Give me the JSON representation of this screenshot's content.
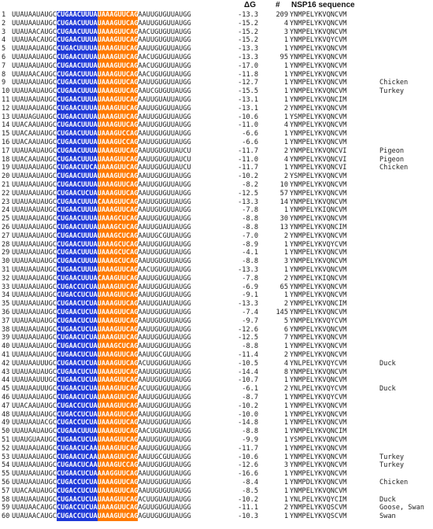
{
  "headers": {
    "dg": "ΔG",
    "count": "#",
    "protein": "NSP16 sequence"
  },
  "rows": [
    {
      "n": "1",
      "pre": "UUAUAAUAUGC",
      "blue": "CUGAACUUUA",
      "red": "UAAAGUUCAG",
      "post": "AAUUGUGUUAUGG",
      "dg": "-13.3",
      "count": "209",
      "protein": "YNMPELYKVQNCVM",
      "host": ""
    },
    {
      "n": "2",
      "pre": "UUAUAAUAUGC",
      "blue": "CUGAACUUUA",
      "red": "UAAAGUUCAG",
      "post": "AAUUGUGUUAUGG",
      "dg": "-15.2",
      "count": "4",
      "protein": "YNMPELYKVQNCVM",
      "host": ""
    },
    {
      "n": "3",
      "pre": "UUAUAACAUGC",
      "blue": "CUGAACUUUA",
      "red": "UAAAGUUCAG",
      "post": "AACUGUGUUAUGG",
      "dg": "-15.2",
      "count": "3",
      "protein": "YNMPELYKVQNCVM",
      "host": ""
    },
    {
      "n": "4",
      "pre": "UUAUAACAUGC",
      "blue": "CUGAACUUUA",
      "red": "UAAAGUUCAG",
      "post": "AAUUGUGUUAUGG",
      "dg": "-15.2",
      "count": "1",
      "protein": "YNMPELYKVQYCVM",
      "host": ""
    },
    {
      "n": "5",
      "pre": "UUAUAAUAUGC",
      "blue": "CUGACUUUUA",
      "red": "UAAAGUUCAG",
      "post": "AAUUGUGUUAUGG",
      "dg": "-13.3",
      "count": "1",
      "protein": "YNMPELYKVQNCVM",
      "host": ""
    },
    {
      "n": "6",
      "pre": "UUAUAAUAUGC",
      "blue": "CUGAACUUUA",
      "red": "UAAAGUUCAG",
      "post": "AACUGUGUUAUGG",
      "dg": "-13.3",
      "count": "95",
      "protein": "YNMPELYKVQNCVM",
      "host": ""
    },
    {
      "n": "7",
      "pre": "UUAUAAUAUGC",
      "blue": "CUGAACUUUA",
      "red": "UAAAGUUCAG",
      "post": "AACUGUGUUAUGG",
      "dg": "-17.0",
      "count": "1",
      "protein": "YNMPELYKVQNCVM",
      "host": ""
    },
    {
      "n": "8",
      "pre": "UUAUAACAUGC",
      "blue": "CUGAACUUUA",
      "red": "UAAAGUUCAG",
      "post": "AACUGUGUUAUGG",
      "dg": "-11.8",
      "count": "1",
      "protein": "YNMPELYKVQNCVM",
      "host": ""
    },
    {
      "n": "9",
      "pre": "UUAUAAUAUGC",
      "blue": "CUGAACUUUA",
      "red": "UAAAGUUCAG",
      "post": "AAUUGUGUUAUGG",
      "dg": "-12.7",
      "count": "1",
      "protein": "YNMPELYKVQNCVM",
      "host": "Chicken"
    },
    {
      "n": "10",
      "pre": "UUAUAAUAUGC",
      "blue": "CUGAACUUUA",
      "red": "UAAAGUUCAG",
      "post": "AAUCGUGUUAUGG",
      "dg": "-15.5",
      "count": "1",
      "protein": "YNMPELYKVQNCVM",
      "host": "Turkey"
    },
    {
      "n": "11",
      "pre": "UUAUAAUAUGC",
      "blue": "CUGAACUUUA",
      "red": "UAAAGUUCAG",
      "post": "AAUUGUAUUAUGG",
      "dg": "-13.1",
      "count": "1",
      "protein": "YNMPELYKVQNCIM",
      "host": ""
    },
    {
      "n": "12",
      "pre": "UUAUAAUAUGC",
      "blue": "CUGAACUUUA",
      "red": "UAAAGUUCAG",
      "post": "AAUUGUGUUAUGG",
      "dg": "-13.1",
      "count": "2",
      "protein": "YNMPELYKVQNCVM",
      "host": ""
    },
    {
      "n": "13",
      "pre": "UUAUAGUAUGC",
      "blue": "CUGAACUUUA",
      "red": "UAAAGUUCAG",
      "post": "AAUUGUGUUAUGG",
      "dg": "-10.6",
      "count": "1",
      "protein": "YSMPELYKVQNCVM",
      "host": ""
    },
    {
      "n": "14",
      "pre": "UUACAAUAUGC",
      "blue": "CUGAACUUUA",
      "red": "UAAAGUUCAG",
      "post": "AAUUGUGUUAUGG",
      "dg": "-11.0",
      "count": "4",
      "protein": "YNMPELYKVQNCVM",
      "host": ""
    },
    {
      "n": "15",
      "pre": "UUACAAUAUGC",
      "blue": "CUGAACUUUA",
      "red": "UAAAGUCCAG",
      "post": "AAUUGUGUUAUGG",
      "dg": "-6.6",
      "count": "1",
      "protein": "YNMPELYKVQNCVM",
      "host": ""
    },
    {
      "n": "16",
      "pre": "UUACAAUAUGC",
      "blue": "CUGAACUUUA",
      "red": "UAAAGUCCAG",
      "post": "AAUUGUGUUAUGG",
      "dg": "-6.6",
      "count": "1",
      "protein": "YNMPELYKVQNCVM",
      "host": ""
    },
    {
      "n": "17",
      "pre": "UUAUAAUAUGC",
      "blue": "CUGAACUUUA",
      "red": "UAAAGUUCAG",
      "post": "AAUUGUGUUAUCU",
      "dg": "-11.7",
      "count": "2",
      "protein": "YNMPELYKVQNCVI",
      "host": "Pigeon"
    },
    {
      "n": "18",
      "pre": "UUACAAUAUGC",
      "blue": "CUGAACUUUA",
      "red": "UAAAGUUCAG",
      "post": "AAUUGUGUUAUCU",
      "dg": "-11.0",
      "count": "4",
      "protein": "YNMPELYKVQNCVI",
      "host": "Pigeon"
    },
    {
      "n": "19",
      "pre": "UUAUAAUAUGC",
      "blue": "CUGAACUUCA",
      "red": "UAAAGUUCAG",
      "post": "AAUUGUGUUAUCU",
      "dg": "-11.7",
      "count": "1",
      "protein": "YNMPELYKVQNCVI",
      "host": "Chicken"
    },
    {
      "n": "20",
      "pre": "UUAUAAUAUGC",
      "blue": "CUGAACUUUA",
      "red": "UAAAGUUCAG",
      "post": "AAUUGUGUUAUGG",
      "dg": "-10.2",
      "count": "2",
      "protein": "YSMPELYKVQNCVM",
      "host": ""
    },
    {
      "n": "21",
      "pre": "UUAUAAUAUGC",
      "blue": "CUGAACUUUA",
      "red": "UAAAGUUCAG",
      "post": "AAUUGUGUUAUGG",
      "dg": "-8.2",
      "count": "10",
      "protein": "YNMPELYKVQNCVM",
      "host": ""
    },
    {
      "n": "22",
      "pre": "UUAUAAUAUGC",
      "blue": "CUGAACUCUA",
      "red": "UAAAGUUCAG",
      "post": "AAUUGUGUUAUGG",
      "dg": "-12.5",
      "count": "57",
      "protein": "YNMPELYKVQNCVM",
      "host": ""
    },
    {
      "n": "23",
      "pre": "UUAUAAUAUGC",
      "blue": "CUGAACUUUA",
      "red": "CAAAGUUCAG",
      "post": "AAUUGUGUUAUGG",
      "dg": "-13.3",
      "count": "14",
      "protein": "YNMPELYKVQNCVM",
      "host": ""
    },
    {
      "n": "24",
      "pre": "UUAUAAUAUGC",
      "blue": "CUGAACUUUA",
      "red": "UAAAGUUCAG",
      "post": "AAUUGUGUUAUGG",
      "dg": "-7.8",
      "count": "1",
      "protein": "YNMPELYKIQNCVM",
      "host": ""
    },
    {
      "n": "25",
      "pre": "UUAUAAUAUGC",
      "blue": "CUGAACUUUA",
      "red": "UAAAGCUCAG",
      "post": "AAUUGUGUUAUGG",
      "dg": "-8.8",
      "count": "30",
      "protein": "YNMPELYKVQNCVM",
      "host": ""
    },
    {
      "n": "26",
      "pre": "UUAUAAUAUGC",
      "blue": "CUGAACUUUA",
      "red": "UAAAGCUCAG",
      "post": "AAUUGUAUUAUGG",
      "dg": "-8.8",
      "count": "13",
      "protein": "YNMPELYKVQNCIM",
      "host": ""
    },
    {
      "n": "27",
      "pre": "UUAUAAUAUGC",
      "blue": "CUGAACUUUA",
      "red": "UAAAGCUCAG",
      "post": "AAUUGCGUUAUGG",
      "dg": "-7.0",
      "count": "2",
      "protein": "YNMPELYKVQNCVM",
      "host": ""
    },
    {
      "n": "28",
      "pre": "UUAUAAUAUGC",
      "blue": "CUGAACUUUA",
      "red": "UAAAGCUCAG",
      "post": "AAUUGUGUUAUGG",
      "dg": "-8.9",
      "count": "1",
      "protein": "YNMPELYKVQYCVM",
      "host": ""
    },
    {
      "n": "29",
      "pre": "UUAUAAUAUGC",
      "blue": "CUGAACUUUA",
      "red": "UAAAGCUCAG",
      "post": "AAUUGUGUUAUGG",
      "dg": "-4.1",
      "count": "1",
      "protein": "YNMPELYKVQNCVM",
      "host": ""
    },
    {
      "n": "30",
      "pre": "UUAUAAUAUGC",
      "blue": "CUGAACUUUA",
      "red": "UAAAGCUCAG",
      "post": "AAUUGUGUUAUGG",
      "dg": "-8.8",
      "count": "3",
      "protein": "YNMPELYKVQNCVM",
      "host": ""
    },
    {
      "n": "31",
      "pre": "UUAUAAUAUGC",
      "blue": "CUGAACUUUA",
      "red": "UAAAGUUCAG",
      "post": "AACUGUGUUAUGG",
      "dg": "-13.3",
      "count": "1",
      "protein": "YNMPELYKVQNCVM",
      "host": ""
    },
    {
      "n": "32",
      "pre": "UUAUAAUAUGC",
      "blue": "CUGAACUUUA",
      "red": "CAAAGUUCAG",
      "post": "AAUUGUGUUAUGG",
      "dg": "-7.8",
      "count": "2",
      "protein": "YNMPELYKIQNCVM",
      "host": ""
    },
    {
      "n": "33",
      "pre": "UUAUAAUAUGC",
      "blue": "CUGACCUCUA",
      "red": "UAAAGUUCAG",
      "post": "AAUUGUGUUAUGG",
      "dg": "-6.9",
      "count": "65",
      "protein": "YNMPELYKVQNCVM",
      "host": ""
    },
    {
      "n": "34",
      "pre": "UUAUAAUAUGC",
      "blue": "CUGACCUCUA",
      "red": "UAAAGUUCAG",
      "post": "AAUUGUGUUAUGG",
      "dg": "-9.1",
      "count": "1",
      "protein": "YNMPELYKVQNCVM",
      "host": ""
    },
    {
      "n": "35",
      "pre": "UUAUAAUAUGC",
      "blue": "CUGAACUCUA",
      "red": "UAAAGUUCAG",
      "post": "AAUUGUAUUAUGG",
      "dg": "-13.3",
      "count": "2",
      "protein": "YNMPELYKVQNCIM",
      "host": ""
    },
    {
      "n": "36",
      "pre": "UUAUAAUAUGC",
      "blue": "CUGAACUCUA",
      "red": "UAAAGUUCAG",
      "post": "AAUUGUGUUAUGG",
      "dg": "-7.4",
      "count": "145",
      "protein": "YNMPELYKVQNCVM",
      "host": ""
    },
    {
      "n": "37",
      "pre": "UUAUAAUAUGC",
      "blue": "CUGAACUCUA",
      "red": "UAAAGUUCAG",
      "post": "AAUUGUGUUAUGG",
      "dg": "-9.7",
      "count": "5",
      "protein": "YNMPELYKVQYCVM",
      "host": ""
    },
    {
      "n": "38",
      "pre": "UUAUAAUAUGC",
      "blue": "CUGAACUCUA",
      "red": "UAAAGUUCAG",
      "post": "AAUUGUGUUAUGG",
      "dg": "-12.6",
      "count": "6",
      "protein": "YNMPELYKVQNCVM",
      "host": ""
    },
    {
      "n": "39",
      "pre": "UUAUAAUAUGC",
      "blue": "CUGAACUCUA",
      "red": "UAAAGUUCAG",
      "post": "AAUUGUGUUAUGG",
      "dg": "-12.5",
      "count": "7",
      "protein": "YNMPELYKVQNCVM",
      "host": ""
    },
    {
      "n": "40",
      "pre": "UUAUAAUAUGC",
      "blue": "CUGAACUCUA",
      "red": "UAAAGCUCAG",
      "post": "AAUUGUGUUAUGG",
      "dg": "-8.8",
      "count": "1",
      "protein": "YNMPELYKVQNCVM",
      "host": ""
    },
    {
      "n": "41",
      "pre": "UUAUAAUAUGC",
      "blue": "CUGAACUCUA",
      "red": "UAAAGUUCAG",
      "post": "AAUUGCGUUAUGG",
      "dg": "-11.4",
      "count": "2",
      "protein": "YNMPELYKVQNCVM",
      "host": ""
    },
    {
      "n": "42",
      "pre": "UUAUAAUUUGC",
      "blue": "CUGAACUCUA",
      "red": "UAAAGUUCAG",
      "post": "ACUUGUGUUAUGG",
      "dg": "-10.5",
      "count": "4",
      "protein": "YNLPELYKVQYCVM",
      "host": "Duck"
    },
    {
      "n": "43",
      "pre": "UUAUAAUAUGC",
      "blue": "CUGAACUCUA",
      "red": "UAAAGUUCAG",
      "post": "AAUUGUGUUAUGG",
      "dg": "-14.4",
      "count": "8",
      "protein": "YNMPELYKVQNCVM",
      "host": ""
    },
    {
      "n": "44",
      "pre": "UUAUAAUUUGC",
      "blue": "CUGAACUCUA",
      "red": "UAAAGUUCAG",
      "post": "AAUUGUGUUAUGG",
      "dg": "-10.7",
      "count": "1",
      "protein": "YNMPELYKVQNCVM",
      "host": ""
    },
    {
      "n": "45",
      "pre": "UUAUAAUUUGC",
      "blue": "CUGAACUCUA",
      "red": "UAAAGUUCAG",
      "post": "ACUUGUGUUAUGG",
      "dg": "-6.1",
      "count": "2",
      "protein": "YNLPELYKVQYCVM",
      "host": "Duck"
    },
    {
      "n": "46",
      "pre": "UUAUAAUAUGC",
      "blue": "CUGAACUCUA",
      "red": "UAAAGUUCAG",
      "post": "AAUUGUGUUAUGG",
      "dg": "-8.7",
      "count": "1",
      "protein": "YNMPELYKVQYCVM",
      "host": ""
    },
    {
      "n": "47",
      "pre": "UUACAAUAUGC",
      "blue": "CUGACCUCUA",
      "red": "UAAAGUUCAG",
      "post": "AAUUGUGUUAUGG",
      "dg": "-10.2",
      "count": "1",
      "protein": "YNMPELYKVQNCVM",
      "host": ""
    },
    {
      "n": "48",
      "pre": "UUAUAAUAUGC",
      "blue": "CUGACCUCUA",
      "red": "UAAAGUUCAG",
      "post": "AAUUGUGUUAUGG",
      "dg": "-10.0",
      "count": "1",
      "protein": "YNMPELYKVQNCVM",
      "host": ""
    },
    {
      "n": "49",
      "pre": "UUAUAAUACGC",
      "blue": "CUGACCUCUA",
      "red": "UAAAGUUCAG",
      "post": "AAUUGUGUUAUGG",
      "dg": "-14.8",
      "count": "1",
      "protein": "YNMPELYKVQNCVM",
      "host": ""
    },
    {
      "n": "50",
      "pre": "UUAUAAUAUGC",
      "blue": "CUGAACUUUA",
      "red": "UAAAGUUCAG",
      "post": "AACUGUAUUAUGG",
      "dg": "-8.8",
      "count": "1",
      "protein": "YNMPELYKVQNCIM",
      "host": ""
    },
    {
      "n": "51",
      "pre": "UUAUGUAAUGC",
      "blue": "CUGAACUCUA",
      "red": "UAAAGUUCAG",
      "post": "AAUUGUGUUAUGG",
      "dg": "-9.9",
      "count": "1",
      "protein": "YSMPELYKVQNCVM",
      "host": ""
    },
    {
      "n": "52",
      "pre": "UUAUAAUAUGC",
      "blue": "CUGAACUCAA",
      "red": "UAAAGUUCAG",
      "post": "AAUUGUGUUAUGG",
      "dg": "-11.7",
      "count": "1",
      "protein": "YNMPELYKVQNCVM",
      "host": ""
    },
    {
      "n": "53",
      "pre": "UUAUAAUAUGC",
      "blue": "CUGAACUCAA",
      "red": "UAAAGUUCAG",
      "post": "AAUUGCGUUAUGG",
      "dg": "-10.6",
      "count": "1",
      "protein": "YNMPELYKVQNCVM",
      "host": "Turkey"
    },
    {
      "n": "54",
      "pre": "UUAUAAUAUGC",
      "blue": "CUGAACUCAA",
      "red": "UAAAGUCCAG",
      "post": "AAUUGUGUUAUGG",
      "dg": "-12.6",
      "count": "3",
      "protein": "YNMPELYKVQNCVM",
      "host": "Turkey"
    },
    {
      "n": "55",
      "pre": "UUAUAAUAUGC",
      "blue": "CUGAACUCUA",
      "red": "AAAGGUUCAG",
      "post": "AAUUGUGUUAUGG",
      "dg": "-16.6",
      "count": "1",
      "protein": "YNMPELYKVQNCVM",
      "host": ""
    },
    {
      "n": "56",
      "pre": "UUAUAAUAUGC",
      "blue": "CUGACCUCUA",
      "red": "UAAAGUUCAG",
      "post": "AAUUGUGUUAUGG",
      "dg": "-8.4",
      "count": "1",
      "protein": "YNMPDLYKVQNCVM",
      "host": "Chicken"
    },
    {
      "n": "57",
      "pre": "UUACAAUAUGC",
      "blue": "CUGACCUCUA",
      "red": "UAAAGUUCAG",
      "post": "AAUUGUGUUAUGG",
      "dg": "-8.5",
      "count": "1",
      "protein": "YNMPELYKVQNCVM",
      "host": ""
    },
    {
      "n": "58",
      "pre": "UUAUAAUAUGC",
      "blue": "CUGAACUCUA",
      "red": "UAAAGUUCAG",
      "post": "ACUUGUAUUAUGG",
      "dg": "-10.2",
      "count": "1",
      "protein": "YNLPELYKVQYCIM",
      "host": "Duck"
    },
    {
      "n": "59",
      "pre": "UUAUAACAUGC",
      "blue": "CUGACCUCUA",
      "red": "UAAAGUUCAG",
      "post": "AGUUGUGUUAUGG",
      "dg": "-11.1",
      "count": "2",
      "protein": "YNMPELYKVQSCVM",
      "host": "Goose, Swan"
    },
    {
      "n": "60",
      "pre": "UUAUAACAUGC",
      "blue": "CUGACCUCUA",
      "red": "UAAAGUUCAG",
      "post": "AGUUGUGUUAUGG",
      "dg": "-10.3",
      "count": "1",
      "protein": "YNMPELYKVQSCVM",
      "host": "Swan"
    }
  ]
}
